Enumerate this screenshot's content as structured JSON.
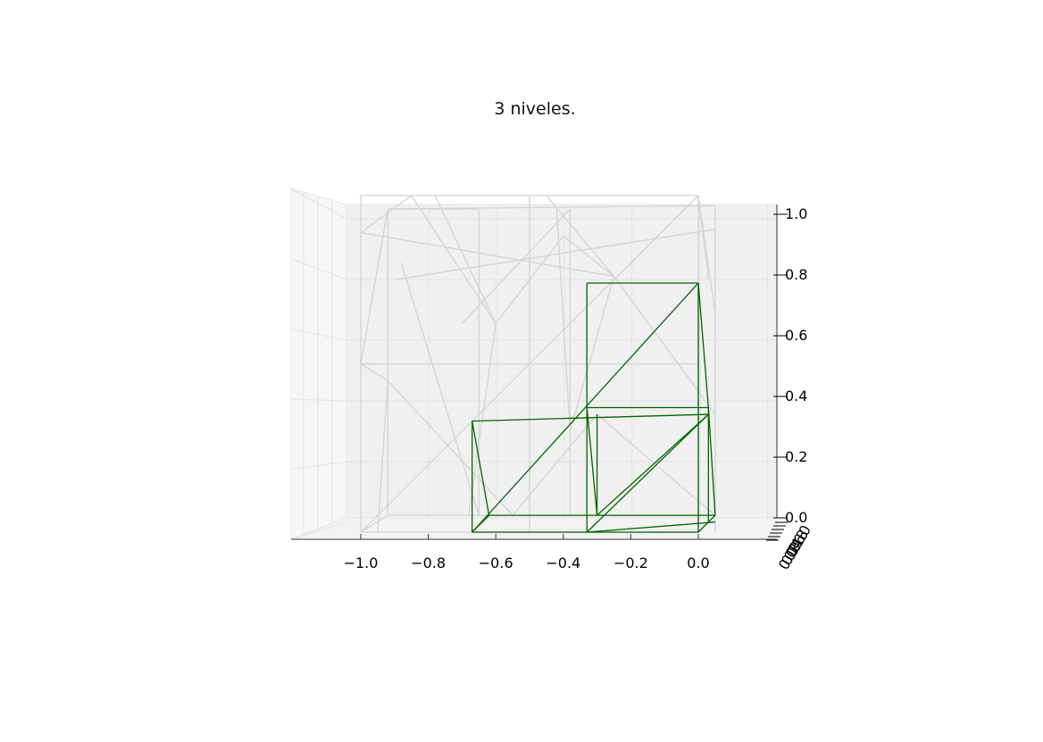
{
  "chart_data": {
    "type": "3d-wireframe",
    "title": "3 niveles.",
    "view": "front (azimuth -90, elevation ~0)",
    "x_axis": {
      "ticks": [
        -1.0,
        -0.8,
        -0.6,
        -0.4,
        -0.2,
        0.0
      ],
      "tick_labels": [
        "−1.0",
        "−0.8",
        "−0.6",
        "−0.4",
        "−0.2",
        "0.0"
      ]
    },
    "z_axis": {
      "ticks": [
        0.0,
        0.2,
        0.4,
        0.6,
        0.8,
        1.0
      ],
      "tick_labels": [
        "0.0",
        "0.2",
        "0.4",
        "0.6",
        "0.8",
        "1.0"
      ]
    },
    "y_axis": {
      "tick_labels": [
        "0.0",
        "0.2",
        "0.4",
        "0.6",
        "0.8",
        "1.0"
      ],
      "note": "axis seen edge-on; labels overlap"
    },
    "grid": true,
    "series": [
      {
        "color": "#d3d3d3",
        "segments": [
          [
            [
              -1.0,
              1.0
            ],
            [
              0.0,
              1.0
            ]
          ],
          [
            [
              0.0,
              1.0
            ],
            [
              -1.0,
              0.0
            ]
          ],
          [
            [
              -1.0,
              1.0
            ],
            [
              -1.0,
              0.0
            ]
          ],
          [
            [
              0.0,
              1.0
            ],
            [
              0.0,
              0.0
            ]
          ],
          [
            [
              -1.0,
              0.0
            ],
            [
              0.0,
              0.0
            ]
          ],
          [
            [
              -1.0,
              0.5
            ],
            [
              0.0,
              0.5
            ]
          ],
          [
            [
              -0.5,
              1.0
            ],
            [
              -0.5,
              0.0
            ]
          ],
          [
            [
              -0.92,
              0.96
            ],
            [
              -0.92,
              0.05
            ]
          ],
          [
            [
              -0.65,
              0.96
            ],
            [
              -0.65,
              0.05
            ]
          ],
          [
            [
              -0.38,
              0.96
            ],
            [
              -0.38,
              0.05
            ]
          ],
          [
            [
              -0.92,
              0.96
            ],
            [
              0.05,
              0.97
            ]
          ],
          [
            [
              -1.0,
              0.89
            ],
            [
              -0.25,
              0.76
            ]
          ],
          [
            [
              -1.0,
              0.89
            ],
            [
              -0.85,
              1.0
            ]
          ],
          [
            [
              -0.85,
              1.0
            ],
            [
              -0.6,
              0.62
            ]
          ],
          [
            [
              -0.6,
              0.62
            ],
            [
              -0.68,
              0.05
            ]
          ],
          [
            [
              -0.92,
              0.96
            ],
            [
              -1.0,
              0.5
            ]
          ],
          [
            [
              -1.0,
              0.5
            ],
            [
              -0.92,
              0.45
            ]
          ],
          [
            [
              -0.92,
              0.45
            ],
            [
              -0.55,
              0.05
            ]
          ],
          [
            [
              -0.92,
              0.45
            ],
            [
              -0.95,
              0.0
            ]
          ],
          [
            [
              -0.78,
              1.0
            ],
            [
              -0.6,
              0.62
            ]
          ],
          [
            [
              -0.6,
              0.62
            ],
            [
              -0.4,
              0.88
            ]
          ],
          [
            [
              -0.45,
              1.0
            ],
            [
              -0.25,
              0.76
            ]
          ],
          [
            [
              -0.4,
              0.88
            ],
            [
              -0.25,
              0.76
            ]
          ],
          [
            [
              -0.25,
              0.76
            ],
            [
              0.05,
              0.35
            ]
          ],
          [
            [
              -0.25,
              0.76
            ],
            [
              -0.38,
              0.3
            ]
          ],
          [
            [
              -0.42,
              0.96
            ],
            [
              -0.38,
              0.3
            ]
          ],
          [
            [
              -0.38,
              0.96
            ],
            [
              -0.7,
              0.62
            ]
          ],
          [
            [
              -0.88,
              0.8
            ],
            [
              -0.65,
              0.05
            ]
          ],
          [
            [
              -0.9,
              0.75
            ],
            [
              0.05,
              0.9
            ]
          ],
          [
            [
              0.0,
              1.0
            ],
            [
              0.05,
              0.65
            ]
          ],
          [
            [
              0.05,
              0.97
            ],
            [
              0.05,
              0.0
            ]
          ],
          [
            [
              0.0,
              1.0
            ],
            [
              0.03,
              0.75
            ]
          ],
          [
            [
              -0.92,
              0.05
            ],
            [
              0.05,
              0.05
            ]
          ],
          [
            [
              -0.92,
              0.96
            ],
            [
              -0.65,
              0.96
            ]
          ],
          [
            [
              -1.0,
              0.0
            ],
            [
              -0.92,
              0.05
            ]
          ],
          [
            [
              0.0,
              0.0
            ],
            [
              0.05,
              0.05
            ]
          ],
          [
            [
              -0.55,
              0.05
            ],
            [
              -0.3,
              0.35
            ]
          ],
          [
            [
              -0.3,
              0.35
            ],
            [
              0.05,
              0.05
            ]
          ]
        ]
      },
      {
        "color": "#006400",
        "segments": [
          [
            [
              -0.67,
              0.33
            ],
            [
              -0.67,
              0.0
            ]
          ],
          [
            [
              -0.67,
              0.0
            ],
            [
              0.0,
              0.0
            ]
          ],
          [
            [
              -0.67,
              0.33
            ],
            [
              0.03,
              0.35
            ]
          ],
          [
            [
              -0.33,
              0.74
            ],
            [
              -0.33,
              0.0
            ]
          ],
          [
            [
              -0.33,
              0.74
            ],
            [
              0.0,
              0.74
            ]
          ],
          [
            [
              0.0,
              0.74
            ],
            [
              0.0,
              0.0
            ]
          ],
          [
            [
              -0.33,
              0.37
            ],
            [
              0.03,
              0.37
            ]
          ],
          [
            [
              -0.33,
              0.37
            ],
            [
              -0.3,
              0.05
            ]
          ],
          [
            [
              -0.67,
              0.0
            ],
            [
              0.0,
              0.74
            ]
          ],
          [
            [
              -0.33,
              0.0
            ],
            [
              0.03,
              0.35
            ]
          ],
          [
            [
              -0.67,
              0.33
            ],
            [
              -0.62,
              0.05
            ]
          ],
          [
            [
              -0.62,
              0.05
            ],
            [
              0.05,
              0.05
            ]
          ],
          [
            [
              0.0,
              0.74
            ],
            [
              0.03,
              0.37
            ]
          ],
          [
            [
              0.03,
              0.37
            ],
            [
              0.05,
              0.05
            ]
          ],
          [
            [
              -0.3,
              0.35
            ],
            [
              -0.3,
              0.05
            ]
          ],
          [
            [
              -0.3,
              0.05
            ],
            [
              0.03,
              0.35
            ]
          ],
          [
            [
              0.0,
              0.0
            ],
            [
              0.05,
              0.05
            ]
          ],
          [
            [
              -0.67,
              0.0
            ],
            [
              -0.62,
              0.05
            ]
          ],
          [
            [
              0.03,
              0.37
            ],
            [
              0.03,
              0.03
            ]
          ],
          [
            [
              -0.33,
              0.0
            ],
            [
              0.05,
              0.03
            ]
          ]
        ]
      }
    ]
  }
}
